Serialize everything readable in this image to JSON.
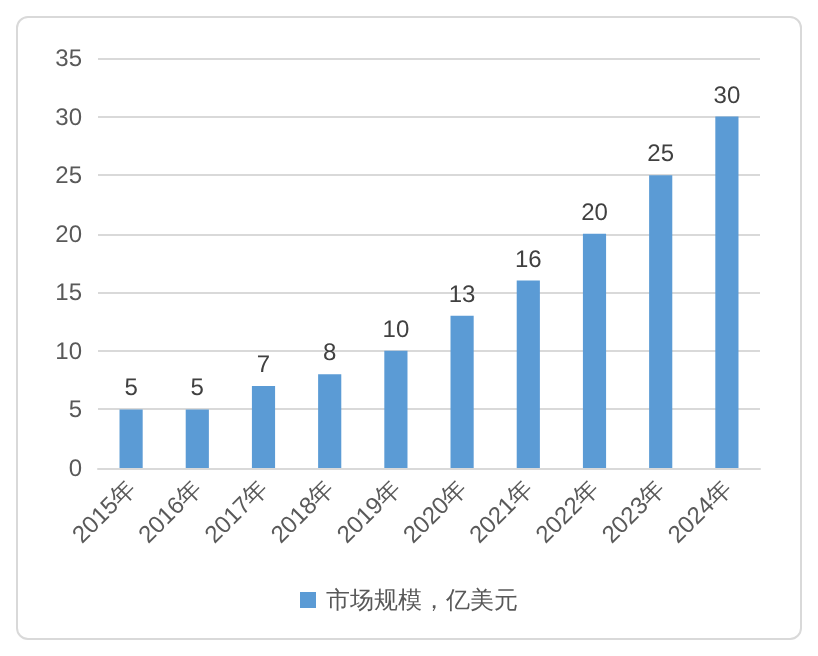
{
  "chart_data": {
    "type": "bar",
    "categories": [
      "2015年",
      "2016年",
      "2017年",
      "2018年",
      "2019年",
      "2020年",
      "2021年",
      "2022年",
      "2023年",
      "2024年"
    ],
    "series": [
      {
        "name": "市场规模，亿美元",
        "color": "#5b9bd5",
        "values": [
          5,
          5,
          7,
          8,
          10,
          13,
          16,
          20,
          25,
          30
        ]
      }
    ],
    "ylim": [
      0,
      35
    ],
    "yticks": [
      0,
      5,
      10,
      15,
      20,
      25,
      30,
      35
    ],
    "grid": "y",
    "legend": "bottom",
    "data_labels": true
  }
}
